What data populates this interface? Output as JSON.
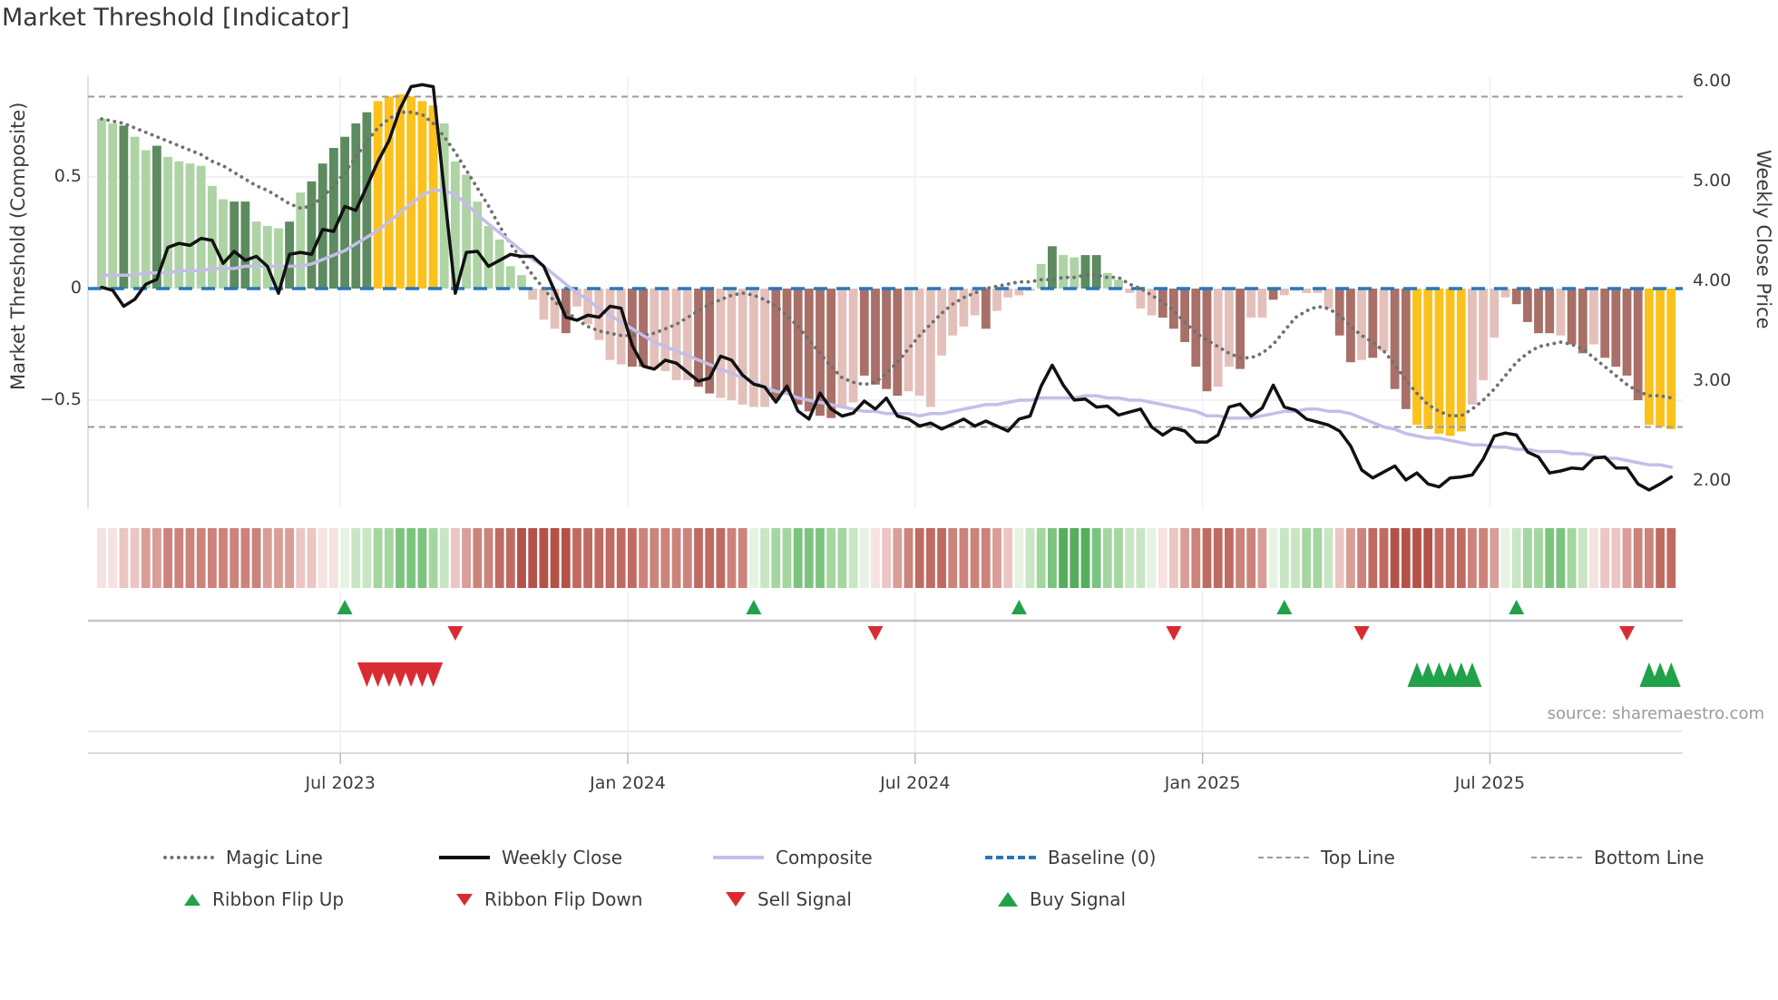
{
  "title": "Market Threshold [Indicator]",
  "source_note": "source: sharemaestro.com",
  "axes": {
    "left_label": "Market Threshold (Composite)",
    "right_label": "Weekly Close Price",
    "left_ticks": [
      {
        "v": 0.5,
        "label": "0.5"
      },
      {
        "v": 0.0,
        "label": "0"
      },
      {
        "v": -0.5,
        "label": "−0.5"
      }
    ],
    "right_ticks": [
      {
        "p": 6.0,
        "label": "6.00"
      },
      {
        "p": 5.0,
        "label": "5.00"
      },
      {
        "p": 4.0,
        "label": "4.00"
      },
      {
        "p": 3.0,
        "label": "3.00"
      },
      {
        "p": 2.0,
        "label": "2.00"
      }
    ],
    "x_ticks": [
      {
        "week": 21.6,
        "label": "Jul 2023"
      },
      {
        "week": 47.6,
        "label": "Jan 2024"
      },
      {
        "week": 73.6,
        "label": "Jul 2024"
      },
      {
        "week": 99.6,
        "label": "Jan 2025"
      },
      {
        "week": 125.6,
        "label": "Jul 2025"
      }
    ]
  },
  "legend": {
    "row1": [
      {
        "label": "Magic Line"
      },
      {
        "label": "Weekly Close"
      },
      {
        "label": "Composite"
      },
      {
        "label": "Baseline (0)"
      },
      {
        "label": "Top Line"
      },
      {
        "label": "Bottom Line"
      }
    ],
    "row2": [
      {
        "label": "Ribbon Flip Up"
      },
      {
        "label": "Ribbon Flip Down"
      },
      {
        "label": "Sell Signal"
      },
      {
        "label": "Buy Signal"
      }
    ]
  },
  "colors": {
    "bar_light_green": "#aed3a5",
    "bar_dark_green": "#5d8b5f",
    "bar_yellow": "#fbc21d",
    "bar_pink": "#e4c0bb",
    "bar_red": "#a87068",
    "baseline_blue": "#2878b8",
    "composite_line": "#c5bde9",
    "magic_line": "#707070",
    "threshold_gray": "#9b9b9b",
    "weekly_close": "#111111",
    "signal_green": "#21a149",
    "signal_red": "#da2b32",
    "ribbon": {
      "p1": "#f6e2e0",
      "p2": "#ebc6c2",
      "p3": "#d89e97",
      "r1": "#cc837b",
      "r2": "#c06b62",
      "r3": "#b4524a",
      "g1": "#e6f3e3",
      "g2": "#c8e6c3",
      "g3": "#a4d6a0",
      "g4": "#7cc47e",
      "g5": "#55ae5e"
    }
  },
  "chart_data": {
    "type": "bar",
    "title": "Market Threshold [Indicator]",
    "xlabel": "",
    "ylabel_left": "Market Threshold (Composite)",
    "ylabel_right": "Weekly Close Price",
    "ylim_left": [
      -0.9,
      0.95
    ],
    "ylim_right": [
      1.6,
      6.1
    ],
    "baseline": 0,
    "top_line": 0.86,
    "bottom_line": -0.62,
    "weeks": 143,
    "bars": {
      "values": [
        0.76,
        0.74,
        0.73,
        0.68,
        0.62,
        0.64,
        0.59,
        0.57,
        0.56,
        0.55,
        0.46,
        0.4,
        0.39,
        0.39,
        0.3,
        0.28,
        0.27,
        0.3,
        0.43,
        0.48,
        0.56,
        0.63,
        0.68,
        0.74,
        0.79,
        0.84,
        0.86,
        0.87,
        0.86,
        0.84,
        0.82,
        0.74,
        0.57,
        0.51,
        0.39,
        0.28,
        0.22,
        0.1,
        0.06,
        -0.05,
        -0.14,
        -0.18,
        -0.2,
        -0.08,
        -0.16,
        -0.23,
        -0.32,
        -0.34,
        -0.35,
        -0.35,
        -0.36,
        -0.37,
        -0.41,
        -0.41,
        -0.44,
        -0.47,
        -0.49,
        -0.5,
        -0.52,
        -0.53,
        -0.53,
        -0.5,
        -0.47,
        -0.52,
        -0.55,
        -0.57,
        -0.58,
        -0.53,
        -0.51,
        -0.39,
        -0.43,
        -0.45,
        -0.48,
        -0.46,
        -0.48,
        -0.53,
        -0.3,
        -0.21,
        -0.17,
        -0.12,
        -0.18,
        -0.1,
        -0.04,
        -0.03,
        -0.01,
        0.11,
        0.19,
        0.15,
        0.14,
        0.15,
        0.15,
        0.07,
        0.04,
        -0.02,
        -0.09,
        -0.12,
        -0.13,
        -0.18,
        -0.24,
        -0.35,
        -0.46,
        -0.44,
        -0.35,
        -0.36,
        -0.13,
        -0.13,
        -0.05,
        -0.03,
        -0.01,
        -0.02,
        -0.02,
        -0.09,
        -0.21,
        -0.33,
        -0.32,
        -0.31,
        -0.28,
        -0.45,
        -0.54,
        -0.61,
        -0.63,
        -0.65,
        -0.66,
        -0.64,
        -0.52,
        -0.41,
        -0.22,
        -0.04,
        -0.07,
        -0.15,
        -0.2,
        -0.2,
        -0.21,
        -0.25,
        -0.29,
        -0.25,
        -0.31,
        -0.35,
        -0.39,
        -0.5,
        -0.61,
        -0.62,
        -0.63
      ],
      "colors": [
        "L",
        "L",
        "D",
        "L",
        "L",
        "D",
        "L",
        "L",
        "L",
        "L",
        "L",
        "L",
        "D",
        "D",
        "L",
        "L",
        "L",
        "D",
        "L",
        "D",
        "D",
        "D",
        "D",
        "D",
        "D",
        "Y",
        "Y",
        "Y",
        "Y",
        "Y",
        "Y",
        "L",
        "L",
        "L",
        "L",
        "L",
        "L",
        "L",
        "L",
        "P",
        "P",
        "P",
        "R",
        "P",
        "P",
        "P",
        "P",
        "P",
        "R",
        "R",
        "P",
        "P",
        "P",
        "P",
        "R",
        "R",
        "P",
        "P",
        "P",
        "P",
        "P",
        "R",
        "R",
        "R",
        "R",
        "R",
        "R",
        "P",
        "P",
        "R",
        "R",
        "R",
        "R",
        "P",
        "P",
        "P",
        "P",
        "P",
        "P",
        "P",
        "R",
        "P",
        "P",
        "P",
        "P",
        "L",
        "D",
        "L",
        "L",
        "D",
        "D",
        "L",
        "L",
        "P",
        "P",
        "P",
        "R",
        "R",
        "R",
        "R",
        "R",
        "P",
        "P",
        "R",
        "P",
        "P",
        "R",
        "P",
        "P",
        "P",
        "P",
        "P",
        "R",
        "R",
        "P",
        "R",
        "P",
        "R",
        "R",
        "Y",
        "Y",
        "Y",
        "Y",
        "Y",
        "P",
        "P",
        "P",
        "P",
        "R",
        "R",
        "R",
        "R",
        "P",
        "R",
        "R",
        "P",
        "R",
        "R",
        "R",
        "R",
        "Y",
        "Y",
        "Y"
      ]
    },
    "ribbon": [
      "p1",
      "p1",
      "p2",
      "p2",
      "p3",
      "p3",
      "r1",
      "r1",
      "r1",
      "r1",
      "r1",
      "r1",
      "r1",
      "r1",
      "r1",
      "p3",
      "p3",
      "p3",
      "p2",
      "p2",
      "p1",
      "p1",
      "g1",
      "g2",
      "g2",
      "g3",
      "g3",
      "g4",
      "g4",
      "g4",
      "g3",
      "g2",
      "p2",
      "p3",
      "r1",
      "r1",
      "r2",
      "r2",
      "r3",
      "r3",
      "r3",
      "r3",
      "r3",
      "r2",
      "r2",
      "r2",
      "r2",
      "r2",
      "r2",
      "r1",
      "r1",
      "r1",
      "r1",
      "r1",
      "r2",
      "r2",
      "r2",
      "r1",
      "r1",
      "g1",
      "g2",
      "g3",
      "g3",
      "g4",
      "g4",
      "g4",
      "g3",
      "g3",
      "g2",
      "g1",
      "p1",
      "p2",
      "p3",
      "r1",
      "r2",
      "r2",
      "r2",
      "r1",
      "r1",
      "r1",
      "r1",
      "p3",
      "p2",
      "g1",
      "g2",
      "g3",
      "g4",
      "g5",
      "g5",
      "g5",
      "g4",
      "g3",
      "g3",
      "g2",
      "g2",
      "g1",
      "p1",
      "p2",
      "p3",
      "r1",
      "r2",
      "r2",
      "r2",
      "r1",
      "r1",
      "p3",
      "g1",
      "g2",
      "g2",
      "g3",
      "g3",
      "g2",
      "p2",
      "p3",
      "r1",
      "r2",
      "r2",
      "r3",
      "r3",
      "r3",
      "r3",
      "r2",
      "r2",
      "r2",
      "r1",
      "r1",
      "p3",
      "g1",
      "g2",
      "g3",
      "g3",
      "g4",
      "g4",
      "g3",
      "g2",
      "p1",
      "p2",
      "p2",
      "p3",
      "r1",
      "r1",
      "r2",
      "r2"
    ],
    "lines": {
      "weekly_close": [
        3.94,
        3.91,
        3.75,
        3.82,
        3.97,
        4.02,
        4.34,
        4.38,
        4.36,
        4.43,
        4.41,
        4.18,
        4.3,
        4.21,
        4.25,
        4.15,
        3.88,
        4.27,
        4.29,
        4.27,
        4.52,
        4.5,
        4.75,
        4.71,
        4.95,
        5.2,
        5.41,
        5.73,
        5.95,
        5.97,
        5.95,
        4.9,
        3.88,
        4.29,
        4.3,
        4.15,
        4.21,
        4.27,
        4.25,
        4.25,
        4.15,
        3.9,
        3.64,
        3.61,
        3.66,
        3.64,
        3.75,
        3.73,
        3.36,
        3.15,
        3.12,
        3.21,
        3.18,
        3.09,
        3.0,
        3.03,
        3.25,
        3.21,
        3.06,
        2.97,
        2.94,
        2.79,
        2.95,
        2.7,
        2.62,
        2.88,
        2.72,
        2.65,
        2.68,
        2.8,
        2.72,
        2.83,
        2.65,
        2.62,
        2.55,
        2.58,
        2.52,
        2.57,
        2.62,
        2.55,
        2.6,
        2.55,
        2.5,
        2.62,
        2.65,
        2.95,
        3.16,
        2.96,
        2.81,
        2.82,
        2.74,
        2.75,
        2.66,
        2.69,
        2.72,
        2.54,
        2.46,
        2.53,
        2.5,
        2.39,
        2.39,
        2.46,
        2.74,
        2.77,
        2.65,
        2.73,
        2.96,
        2.74,
        2.71,
        2.62,
        2.59,
        2.56,
        2.5,
        2.35,
        2.11,
        2.03,
        2.09,
        2.15,
        2.01,
        2.08,
        1.97,
        1.94,
        2.03,
        2.04,
        2.06,
        2.22,
        2.45,
        2.48,
        2.46,
        2.29,
        2.24,
        2.08,
        2.1,
        2.13,
        2.12,
        2.23,
        2.24,
        2.13,
        2.13,
        1.97,
        1.91,
        1.97,
        2.04
      ],
      "composite": [
        0.06,
        0.06,
        0.06,
        0.06,
        0.07,
        0.07,
        0.07,
        0.08,
        0.08,
        0.08,
        0.09,
        0.09,
        0.09,
        0.1,
        0.1,
        0.1,
        0.1,
        0.1,
        0.1,
        0.11,
        0.13,
        0.15,
        0.17,
        0.2,
        0.23,
        0.26,
        0.3,
        0.34,
        0.38,
        0.42,
        0.44,
        0.44,
        0.42,
        0.38,
        0.33,
        0.29,
        0.25,
        0.21,
        0.17,
        0.13,
        0.1,
        0.06,
        0.02,
        -0.02,
        -0.05,
        -0.09,
        -0.12,
        -0.15,
        -0.18,
        -0.21,
        -0.24,
        -0.26,
        -0.28,
        -0.3,
        -0.32,
        -0.34,
        -0.36,
        -0.38,
        -0.4,
        -0.42,
        -0.44,
        -0.46,
        -0.47,
        -0.49,
        -0.5,
        -0.51,
        -0.52,
        -0.53,
        -0.54,
        -0.55,
        -0.55,
        -0.56,
        -0.56,
        -0.56,
        -0.57,
        -0.56,
        -0.56,
        -0.55,
        -0.54,
        -0.53,
        -0.52,
        -0.52,
        -0.51,
        -0.5,
        -0.5,
        -0.49,
        -0.49,
        -0.49,
        -0.49,
        -0.48,
        -0.48,
        -0.49,
        -0.49,
        -0.5,
        -0.5,
        -0.51,
        -0.52,
        -0.53,
        -0.54,
        -0.55,
        -0.57,
        -0.57,
        -0.58,
        -0.58,
        -0.58,
        -0.57,
        -0.56,
        -0.55,
        -0.55,
        -0.54,
        -0.54,
        -0.55,
        -0.55,
        -0.56,
        -0.58,
        -0.6,
        -0.62,
        -0.63,
        -0.65,
        -0.66,
        -0.67,
        -0.67,
        -0.68,
        -0.69,
        -0.7,
        -0.7,
        -0.71,
        -0.71,
        -0.72,
        -0.72,
        -0.73,
        -0.73,
        -0.73,
        -0.74,
        -0.74,
        -0.75,
        -0.76,
        -0.76,
        -0.77,
        -0.78,
        -0.79,
        -0.79,
        -0.8
      ],
      "magic": [
        0.76,
        0.75,
        0.74,
        0.72,
        0.7,
        0.68,
        0.66,
        0.64,
        0.62,
        0.6,
        0.57,
        0.55,
        0.52,
        0.49,
        0.46,
        0.44,
        0.41,
        0.38,
        0.36,
        0.37,
        0.41,
        0.46,
        0.52,
        0.59,
        0.66,
        0.72,
        0.76,
        0.79,
        0.79,
        0.78,
        0.74,
        0.68,
        0.61,
        0.53,
        0.45,
        0.37,
        0.28,
        0.2,
        0.13,
        0.06,
        0.0,
        -0.06,
        -0.1,
        -0.14,
        -0.17,
        -0.19,
        -0.2,
        -0.21,
        -0.21,
        -0.21,
        -0.2,
        -0.18,
        -0.16,
        -0.13,
        -0.1,
        -0.07,
        -0.05,
        -0.03,
        -0.02,
        -0.03,
        -0.05,
        -0.08,
        -0.12,
        -0.17,
        -0.23,
        -0.29,
        -0.35,
        -0.4,
        -0.42,
        -0.43,
        -0.42,
        -0.38,
        -0.33,
        -0.27,
        -0.21,
        -0.16,
        -0.11,
        -0.07,
        -0.04,
        -0.02,
        0.0,
        0.01,
        0.02,
        0.03,
        0.03,
        0.04,
        0.04,
        0.05,
        0.05,
        0.06,
        0.06,
        0.05,
        0.05,
        0.02,
        0.0,
        -0.03,
        -0.06,
        -0.1,
        -0.15,
        -0.2,
        -0.23,
        -0.26,
        -0.29,
        -0.31,
        -0.31,
        -0.29,
        -0.25,
        -0.19,
        -0.13,
        -0.1,
        -0.08,
        -0.09,
        -0.12,
        -0.17,
        -0.21,
        -0.24,
        -0.28,
        -0.34,
        -0.41,
        -0.47,
        -0.52,
        -0.55,
        -0.57,
        -0.57,
        -0.54,
        -0.5,
        -0.45,
        -0.39,
        -0.33,
        -0.29,
        -0.26,
        -0.25,
        -0.24,
        -0.25,
        -0.27,
        -0.31,
        -0.35,
        -0.39,
        -0.43,
        -0.46,
        -0.48,
        -0.48,
        -0.49
      ]
    },
    "signals": {
      "ribbon_flip_up_weeks": [
        22,
        59,
        83,
        107,
        128
      ],
      "ribbon_flip_down_weeks": [
        32,
        70,
        97,
        114,
        138
      ],
      "sell_signal_weeks": [
        24,
        25,
        26,
        27,
        28,
        29,
        30
      ],
      "buy_signal_weeks": [
        119,
        120,
        121,
        122,
        123,
        124,
        140,
        141,
        142
      ]
    }
  }
}
